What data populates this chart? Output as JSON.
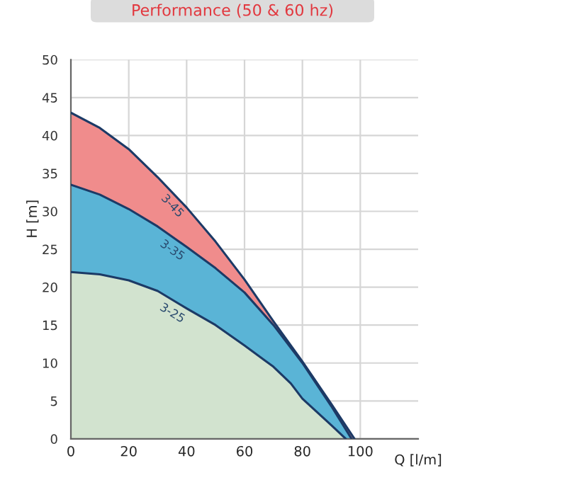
{
  "chart_data": {
    "type": "area",
    "title": "Performance (50 & 60 hz)",
    "xlabel": "Q [l/m]",
    "ylabel": "H [m]",
    "xlim": [
      0,
      120
    ],
    "xticks": [
      0,
      20,
      40,
      60,
      80,
      100
    ],
    "ylim": [
      0,
      50
    ],
    "yticks": [
      0,
      5,
      10,
      15,
      20,
      25,
      30,
      35,
      40,
      45,
      50
    ],
    "grid": true,
    "series": [
      {
        "name": "3-45",
        "color": "#f08c8c",
        "x": [
          0,
          10,
          20,
          30,
          40,
          50,
          60,
          70,
          80,
          90,
          98
        ],
        "values": [
          43,
          41,
          38.2,
          34.5,
          30.5,
          26,
          21,
          15.5,
          10.2,
          4.6,
          0
        ]
      },
      {
        "name": "3-35",
        "color": "#5ab4d6",
        "x": [
          0,
          10,
          20,
          30,
          40,
          50,
          60,
          70,
          80,
          90,
          97
        ],
        "values": [
          33.5,
          32.2,
          30.3,
          28,
          25.3,
          22.5,
          19.3,
          15,
          10,
          4.3,
          0
        ]
      },
      {
        "name": "3-25",
        "color": "#d2e3cf",
        "x": [
          0,
          10,
          20,
          30,
          40,
          50,
          60,
          70,
          76,
          80,
          90,
          95
        ],
        "values": [
          22,
          21.7,
          20.9,
          19.5,
          17.2,
          15,
          12.3,
          9.5,
          7.3,
          5.3,
          1.8,
          0
        ]
      }
    ]
  }
}
